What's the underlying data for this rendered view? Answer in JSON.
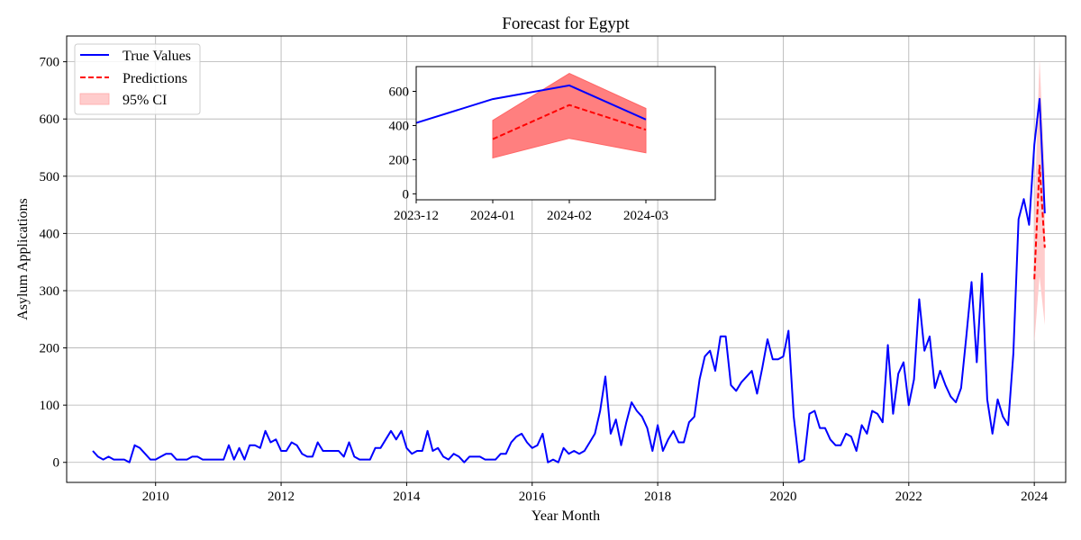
{
  "chart_data": [
    {
      "type": "line",
      "title": "Forecast for Egypt",
      "xlabel": "Year Month",
      "ylabel": "Asylum Applications",
      "xlim": [
        "2008-08",
        "2024-07"
      ],
      "ylim": [
        -35,
        745
      ],
      "grid": true,
      "legend_position": "top-left",
      "x_ticks": [
        "2010",
        "2012",
        "2014",
        "2016",
        "2018",
        "2020",
        "2022",
        "2024"
      ],
      "y_ticks": [
        "0",
        "100",
        "200",
        "300",
        "400",
        "500",
        "600",
        "700"
      ],
      "legend": [
        "True Values",
        "Predictions",
        "95% CI"
      ],
      "colors": {
        "true": "#0000ff",
        "pred": "#ff0000",
        "ci": "#ffcccc"
      },
      "true_values": {
        "x": [
          "2009-01",
          "2009-02",
          "2009-03",
          "2009-04",
          "2009-05",
          "2009-06",
          "2009-07",
          "2009-08",
          "2009-09",
          "2009-10",
          "2009-11",
          "2009-12",
          "2010-01",
          "2010-02",
          "2010-03",
          "2010-04",
          "2010-05",
          "2010-06",
          "2010-07",
          "2010-08",
          "2010-09",
          "2010-10",
          "2010-11",
          "2010-12",
          "2011-01",
          "2011-02",
          "2011-03",
          "2011-04",
          "2011-05",
          "2011-06",
          "2011-07",
          "2011-08",
          "2011-09",
          "2011-10",
          "2011-11",
          "2011-12",
          "2012-01",
          "2012-02",
          "2012-03",
          "2012-04",
          "2012-05",
          "2012-06",
          "2012-07",
          "2012-08",
          "2012-09",
          "2012-10",
          "2012-11",
          "2012-12",
          "2013-01",
          "2013-02",
          "2013-03",
          "2013-04",
          "2013-05",
          "2013-06",
          "2013-07",
          "2013-08",
          "2013-09",
          "2013-10",
          "2013-11",
          "2013-12",
          "2014-01",
          "2014-02",
          "2014-03",
          "2014-04",
          "2014-05",
          "2014-06",
          "2014-07",
          "2014-08",
          "2014-09",
          "2014-10",
          "2014-11",
          "2014-12",
          "2015-01",
          "2015-02",
          "2015-03",
          "2015-04",
          "2015-05",
          "2015-06",
          "2015-07",
          "2015-08",
          "2015-09",
          "2015-10",
          "2015-11",
          "2015-12",
          "2016-01",
          "2016-02",
          "2016-03",
          "2016-04",
          "2016-05",
          "2016-06",
          "2016-07",
          "2016-08",
          "2016-09",
          "2016-10",
          "2016-11",
          "2016-12",
          "2017-01",
          "2017-02",
          "2017-03",
          "2017-04",
          "2017-05",
          "2017-06",
          "2017-07",
          "2017-08",
          "2017-09",
          "2017-10",
          "2017-11",
          "2017-12",
          "2018-01",
          "2018-02",
          "2018-03",
          "2018-04",
          "2018-05",
          "2018-06",
          "2018-07",
          "2018-08",
          "2018-09",
          "2018-10",
          "2018-11",
          "2018-12",
          "2019-01",
          "2019-02",
          "2019-03",
          "2019-04",
          "2019-05",
          "2019-06",
          "2019-07",
          "2019-08",
          "2019-09",
          "2019-10",
          "2019-11",
          "2019-12",
          "2020-01",
          "2020-02",
          "2020-03",
          "2020-04",
          "2020-05",
          "2020-06",
          "2020-07",
          "2020-08",
          "2020-09",
          "2020-10",
          "2020-11",
          "2020-12",
          "2021-01",
          "2021-02",
          "2021-03",
          "2021-04",
          "2021-05",
          "2021-06",
          "2021-07",
          "2021-08",
          "2021-09",
          "2021-10",
          "2021-11",
          "2021-12",
          "2022-01",
          "2022-02",
          "2022-03",
          "2022-04",
          "2022-05",
          "2022-06",
          "2022-07",
          "2022-08",
          "2022-09",
          "2022-10",
          "2022-11",
          "2022-12",
          "2023-01",
          "2023-02",
          "2023-03",
          "2023-04",
          "2023-05",
          "2023-06",
          "2023-07",
          "2023-08",
          "2023-09",
          "2023-10",
          "2023-11",
          "2023-12",
          "2024-01",
          "2024-02",
          "2024-03"
        ],
        "y": [
          20,
          10,
          5,
          10,
          5,
          5,
          5,
          0,
          30,
          25,
          15,
          5,
          5,
          10,
          15,
          15,
          5,
          5,
          5,
          10,
          10,
          5,
          5,
          5,
          5,
          5,
          30,
          5,
          25,
          5,
          30,
          30,
          25,
          55,
          35,
          40,
          20,
          20,
          35,
          30,
          15,
          10,
          10,
          35,
          20,
          20,
          20,
          20,
          10,
          35,
          10,
          5,
          5,
          5,
          25,
          25,
          40,
          55,
          40,
          55,
          25,
          15,
          20,
          20,
          55,
          20,
          25,
          10,
          5,
          15,
          10,
          0,
          10,
          10,
          10,
          5,
          5,
          5,
          15,
          15,
          35,
          45,
          50,
          35,
          25,
          30,
          50,
          0,
          5,
          0,
          25,
          15,
          20,
          15,
          20,
          35,
          50,
          90,
          150,
          50,
          75,
          30,
          70,
          105,
          90,
          80,
          60,
          20,
          65,
          20,
          40,
          55,
          35,
          35,
          70,
          80,
          145,
          185,
          195,
          160,
          220,
          220,
          135,
          125,
          140,
          150,
          160,
          120,
          165,
          215,
          180,
          180,
          185,
          230,
          80,
          0,
          5,
          85,
          90,
          60,
          60,
          40,
          30,
          30,
          50,
          45,
          20,
          65,
          50,
          90,
          85,
          70,
          205,
          85,
          155,
          175,
          100,
          145,
          285,
          195,
          220,
          130,
          160,
          135,
          115,
          105,
          130,
          220,
          315,
          175,
          330,
          110,
          50,
          110,
          80,
          65,
          190,
          425,
          460,
          415,
          555,
          635,
          435
        ]
      },
      "predictions": {
        "x": [
          "2024-01",
          "2024-02",
          "2024-03"
        ],
        "y": [
          320,
          520,
          375
        ],
        "ci_lower": [
          210,
          325,
          240
        ],
        "ci_upper": [
          430,
          705,
          500
        ]
      }
    },
    {
      "type": "line",
      "title": "",
      "xlabel": "",
      "ylabel": "",
      "xlim": [
        "2023-12",
        "2024-04"
      ],
      "ylim": [
        -35,
        745
      ],
      "grid": false,
      "x_ticks": [
        "2023-12",
        "2024-01",
        "2024-02",
        "2024-03"
      ],
      "y_ticks": [
        "0",
        "200",
        "400",
        "600"
      ],
      "colors": {
        "true": "#0000ff",
        "pred": "#ff0000",
        "ci": "#ff7f7f"
      },
      "true_values": {
        "x": [
          "2023-12",
          "2024-01",
          "2024-02",
          "2024-03"
        ],
        "y": [
          415,
          555,
          635,
          435
        ]
      },
      "predictions": {
        "x": [
          "2024-01",
          "2024-02",
          "2024-03"
        ],
        "y": [
          320,
          520,
          375
        ],
        "ci_lower": [
          210,
          325,
          240
        ],
        "ci_upper": [
          430,
          705,
          500
        ]
      }
    }
  ]
}
